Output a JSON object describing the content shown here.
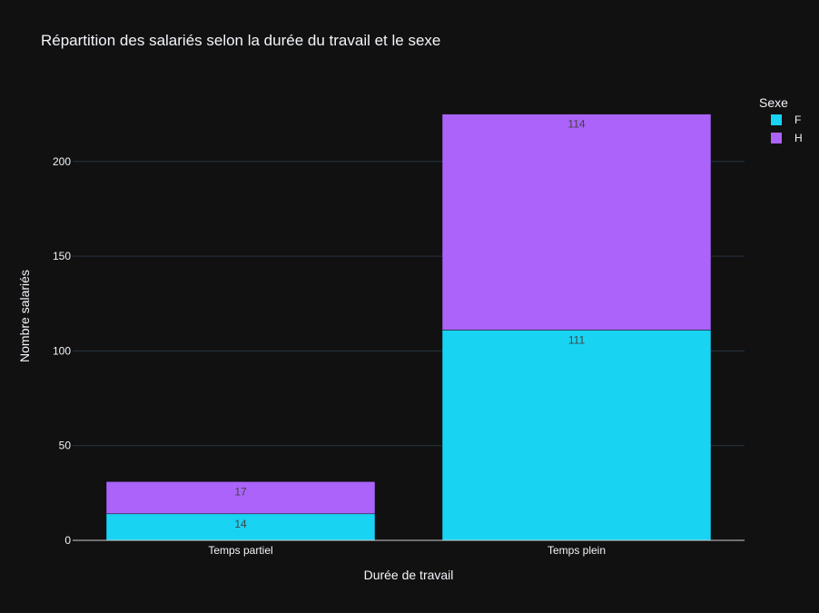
{
  "colors": {
    "background": "#111111",
    "grid": "#283442",
    "axis_line": "#d0d0d0",
    "text": "#f2f5fa",
    "label_text": "#444444",
    "F": "#19d3f3",
    "H": "#ab63fa"
  },
  "chart_data": {
    "type": "bar",
    "barmode": "stack",
    "title": "Répartition des salariés selon la durée du travail et le sexe",
    "xlabel": "Durée de travail",
    "ylabel": "Nombre salariés",
    "categories": [
      "Temps partiel",
      "Temps plein"
    ],
    "ylim": [
      0,
      236.8
    ],
    "yticks": [
      0,
      50,
      100,
      150,
      200
    ],
    "grid": true,
    "legend": {
      "title": "Sexe",
      "placement": "top-right"
    },
    "series": [
      {
        "name": "F",
        "values": [
          14,
          111
        ],
        "color": "#19d3f3"
      },
      {
        "name": "H",
        "values": [
          17,
          114
        ],
        "color": "#ab63fa"
      }
    ]
  }
}
